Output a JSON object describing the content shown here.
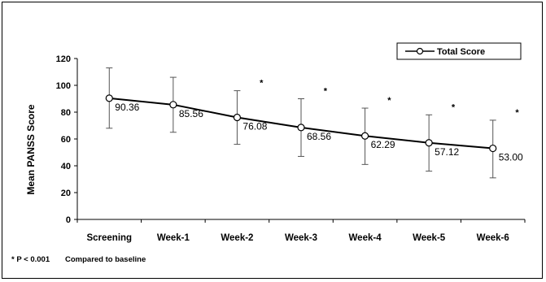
{
  "chart_data": {
    "type": "line",
    "title": "",
    "xlabel": "",
    "ylabel": "Mean PANSS Score",
    "ylim": [
      0,
      120
    ],
    "yticks": [
      0,
      20,
      40,
      60,
      80,
      100,
      120
    ],
    "categories": [
      "Screening",
      "Week-1",
      "Week-2",
      "Week-3",
      "Week-4",
      "Week-5",
      "Week-6"
    ],
    "series": [
      {
        "name": "Total Score",
        "values": [
          90.36,
          85.56,
          76.08,
          68.56,
          62.29,
          57.12,
          53.0
        ],
        "labels": [
          "90.36",
          "85.56",
          "76.08",
          "68.56",
          "62.29",
          "57.12",
          "53.00"
        ],
        "error_low": [
          68,
          65,
          56,
          47,
          41,
          36,
          31
        ],
        "error_high": [
          113,
          106,
          96,
          90,
          83,
          78,
          74
        ],
        "significance_marked": [
          false,
          false,
          true,
          true,
          true,
          true,
          true
        ],
        "color": "#000000"
      }
    ],
    "significance_symbol": "*",
    "legend": {
      "position": "top-right",
      "entries": [
        "Total Score"
      ]
    },
    "grid": false,
    "footnote": {
      "marker": "* P < 0.001",
      "text": "Compared to baseline"
    }
  }
}
